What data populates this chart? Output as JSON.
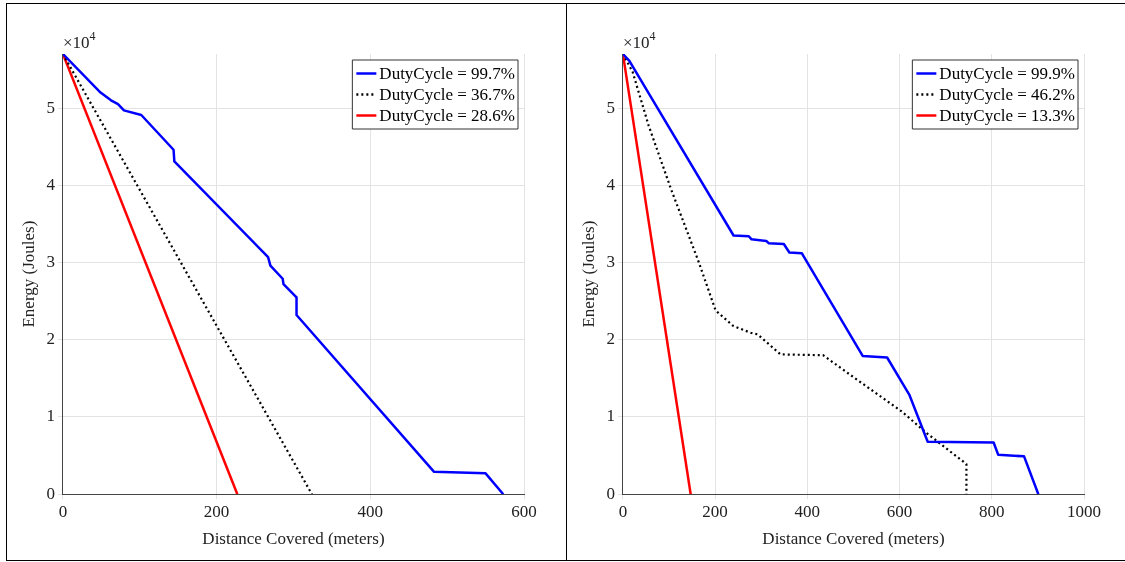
{
  "chart_data": [
    {
      "type": "line",
      "xlabel": "Distance Covered (meters)",
      "ylabel": "Energy (Joules)",
      "annotations": [
        "×10$^{4}$"
      ],
      "xlim": [
        0,
        600
      ],
      "xticks": [
        0,
        200,
        400,
        600
      ],
      "ylim": [
        0,
        5.7
      ],
      "yticks": [
        0,
        1,
        2,
        3,
        4,
        5
      ],
      "grid": true,
      "legend": "top right",
      "marker": "none",
      "series": [
        {
          "name": "DutyCycle = 99.7%",
          "color": "#0000ff",
          "line_style": "solid",
          "x": [
            0,
            49,
            62.6,
            71.7,
            79.4,
            102,
            144,
            145,
            267,
            270,
            286,
            287,
            304,
            304,
            483,
            550,
            573
          ],
          "values": [
            5.7,
            5.2,
            5.1,
            5.05,
            4.97,
            4.91,
            4.46,
            4.31,
            3.07,
            2.96,
            2.79,
            2.72,
            2.55,
            2.32,
            0.29,
            0.27,
            0
          ]
        },
        {
          "name": "DutyCycle = 36.7%",
          "color": "#000000",
          "line_style": "dotted",
          "x": [
            0,
            324
          ],
          "values": [
            5.7,
            0
          ]
        },
        {
          "name": "DutyCycle = 28.6%",
          "color": "#ff0000",
          "line_style": "solid",
          "x": [
            0,
            227
          ],
          "values": [
            5.7,
            0
          ]
        }
      ]
    },
    {
      "type": "line",
      "xlabel": "Distance Covered (meters)",
      "ylabel": "Energy (Joules)",
      "annotations": [
        "×10$^{4}$"
      ],
      "xlim": [
        0,
        1000
      ],
      "xticks": [
        0,
        200,
        400,
        600,
        800,
        1000
      ],
      "ylim": [
        0,
        5.7
      ],
      "yticks": [
        0,
        1,
        2,
        3,
        4,
        5
      ],
      "grid": true,
      "legend": "top right",
      "marker": "none",
      "series": [
        {
          "name": "DutyCycle = 99.9%",
          "color": "#0000ff",
          "line_style": "solid",
          "x": [
            0,
            14,
            240,
            273,
            279,
            311,
            316,
            349,
            361,
            388,
            520,
            573,
            621,
            661,
            804,
            814,
            870,
            901
          ],
          "values": [
            5.7,
            5.61,
            3.35,
            3.34,
            3.3,
            3.28,
            3.25,
            3.24,
            3.13,
            3.12,
            1.79,
            1.77,
            1.29,
            0.68,
            0.67,
            0.51,
            0.49,
            0
          ]
        },
        {
          "name": "DutyCycle = 46.2%",
          "color": "#000000",
          "line_style": "dotted",
          "x": [
            0,
            21,
            56,
            105,
            163,
            201,
            239,
            277,
            292,
            342,
            434,
            506,
            605,
            659,
            745,
            745
          ],
          "values": [
            5.7,
            5.47,
            4.77,
            3.94,
            3.03,
            2.38,
            2.18,
            2.09,
            2.07,
            1.81,
            1.8,
            1.49,
            1.07,
            0.79,
            0.39,
            0
          ]
        },
        {
          "name": "DutyCycle = 13.3%",
          "color": "#ff0000",
          "line_style": "solid",
          "x": [
            0,
            147
          ],
          "values": [
            5.7,
            0
          ]
        }
      ]
    }
  ]
}
